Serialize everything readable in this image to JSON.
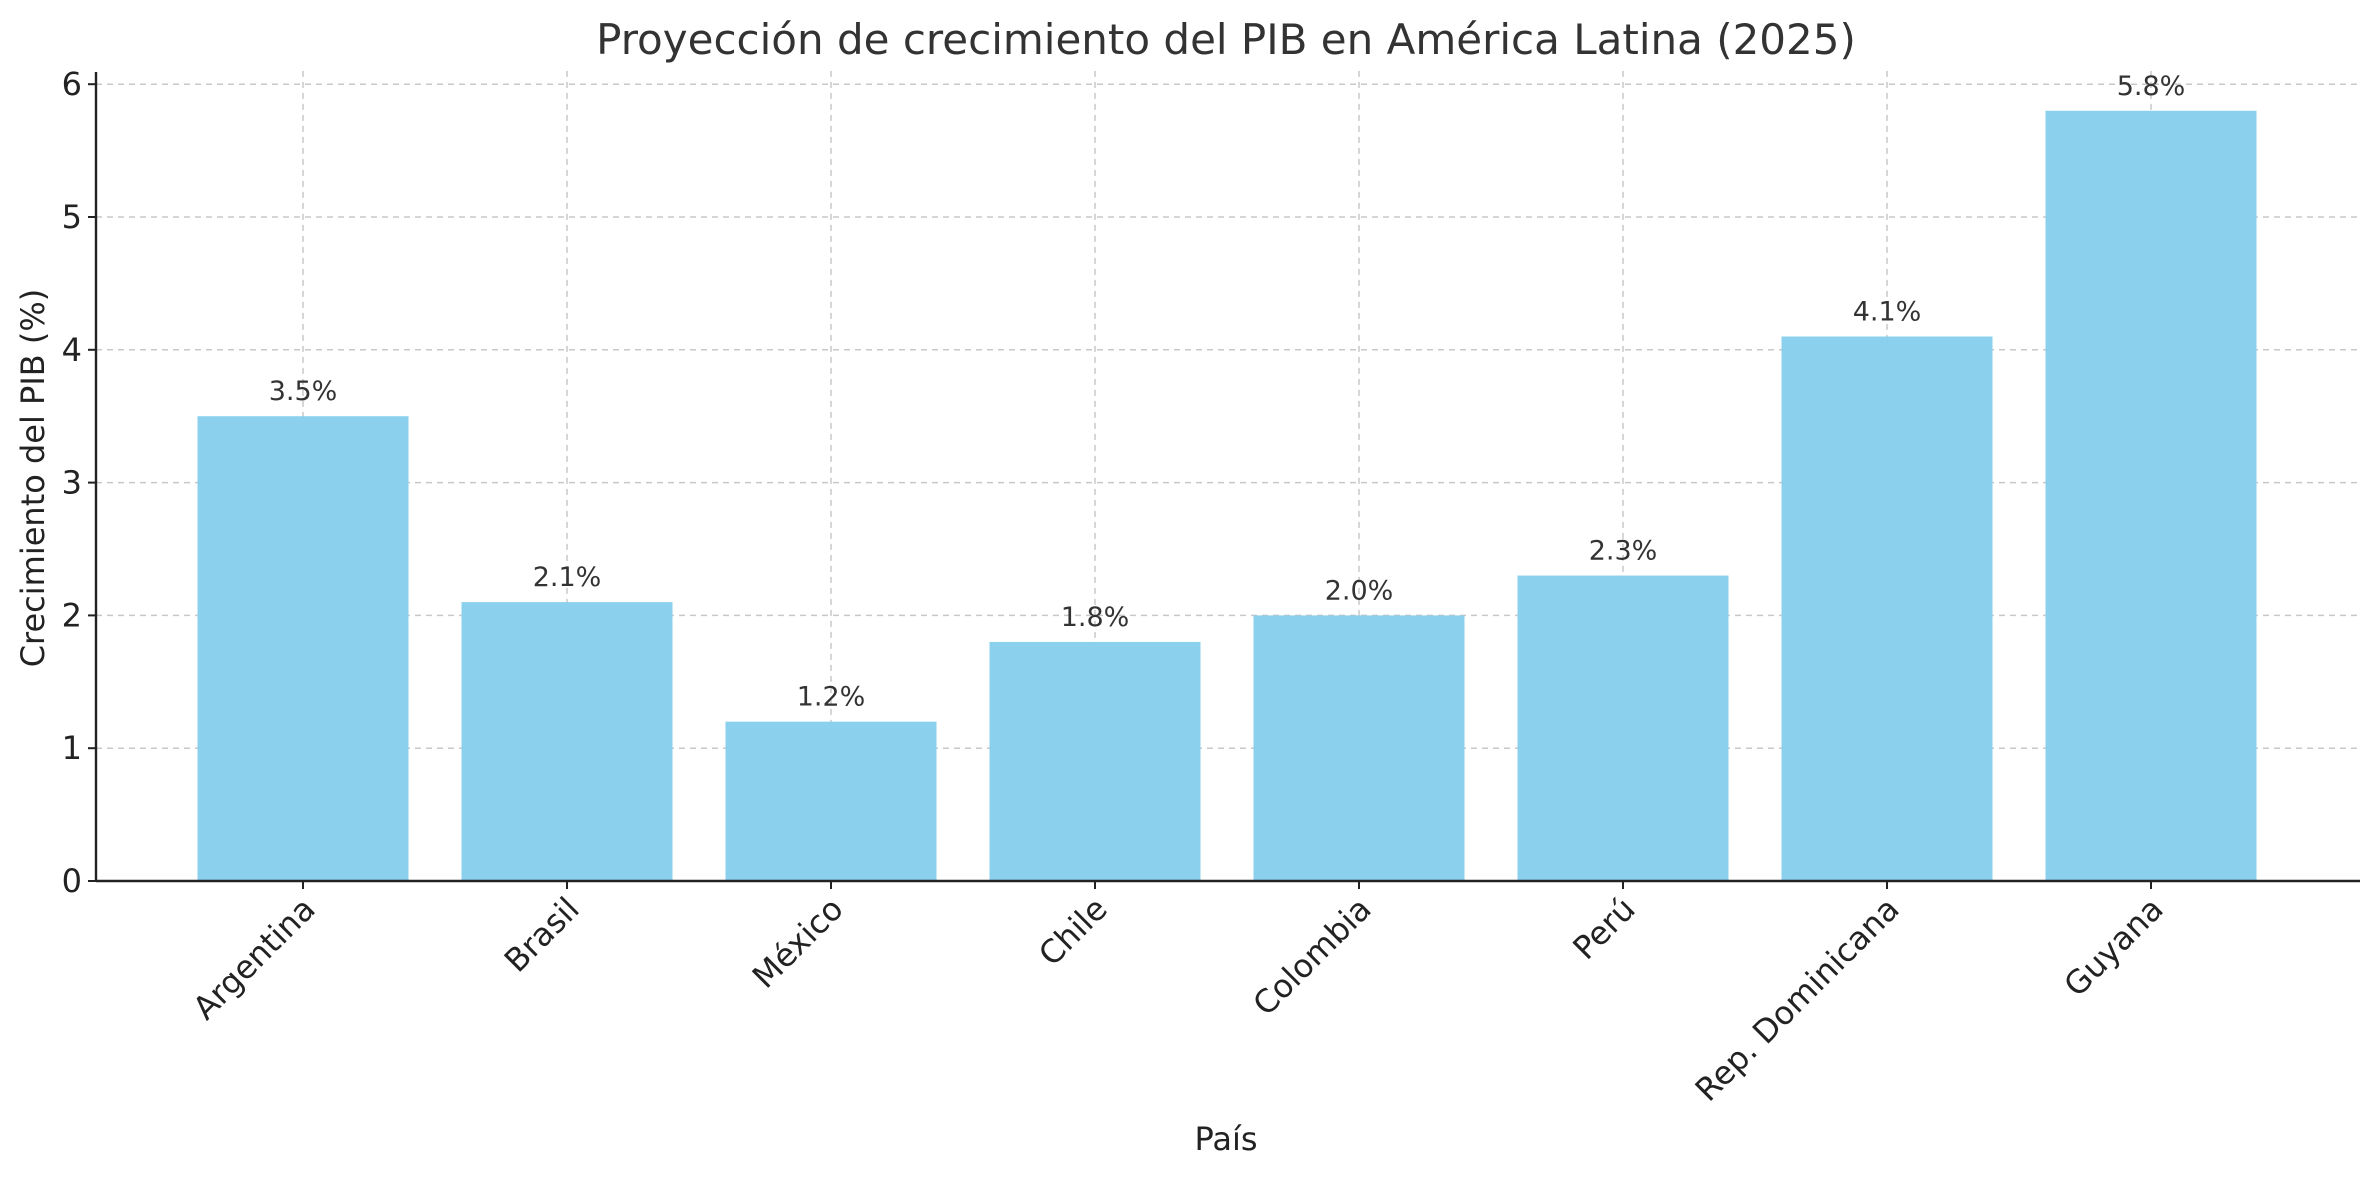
{
  "chart_data": {
    "type": "bar",
    "title": "Proyección de crecimiento del PIB en América Latina (2025)",
    "xlabel": "País",
    "ylabel": "Crecimiento del PIB (%)",
    "categories": [
      "Argentina",
      "Brasil",
      "México",
      "Chile",
      "Colombia",
      "Perú",
      "Rep. Dominicana",
      "Guyana"
    ],
    "values": [
      3.5,
      2.1,
      1.2,
      1.8,
      2.0,
      2.3,
      4.1,
      5.8
    ],
    "data_labels": [
      "3.5%",
      "2.1%",
      "1.2%",
      "1.8%",
      "2.0%",
      "2.3%",
      "4.1%",
      "5.8%"
    ],
    "ylim": [
      0,
      6.1
    ],
    "yticks": [
      0,
      1,
      2,
      3,
      4,
      5,
      6
    ],
    "ytick_labels": [
      "0",
      "1",
      "2",
      "3",
      "4",
      "5",
      "6"
    ],
    "grid": true,
    "bar_color": "#87CEEB"
  }
}
